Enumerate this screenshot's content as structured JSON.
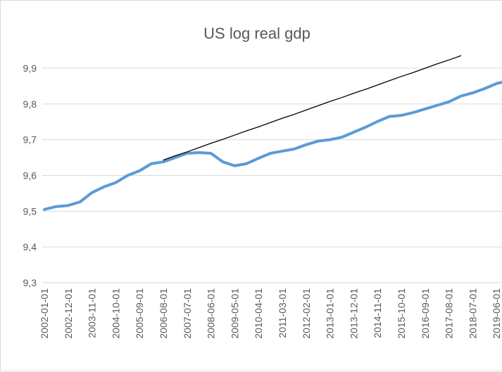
{
  "chart_data": {
    "type": "line",
    "title": "US log real gdp",
    "categories": [
      "2002-01-01",
      null,
      "2002-12-01",
      null,
      "2003-11-01",
      null,
      "2004-10-01",
      null,
      "2005-09-01",
      null,
      "2006-08-01",
      null,
      "2007-07-01",
      null,
      "2008-06-01",
      null,
      "2009-05-01",
      null,
      "2010-04-01",
      null,
      "2011-03-01",
      null,
      "2012-02-01",
      null,
      "2013-01-01",
      null,
      "2013-12-01",
      null,
      "2014-11-01",
      null,
      "2015-10-01",
      null,
      "2016-09-01",
      null,
      "2017-08-01",
      null,
      "2018-07-01",
      null,
      "2019-06-01",
      null
    ],
    "series": [
      {
        "color": "#5b9bd5",
        "width": 4,
        "values": [
          9.505,
          9.513,
          9.516,
          9.526,
          9.552,
          9.568,
          9.58,
          9.6,
          9.613,
          9.633,
          9.638,
          9.65,
          9.662,
          9.664,
          9.662,
          9.638,
          9.627,
          9.633,
          9.648,
          9.662,
          9.668,
          9.674,
          9.686,
          9.696,
          9.7,
          9.707,
          9.721,
          9.735,
          9.751,
          9.765,
          9.768,
          9.776,
          9.786,
          9.796,
          9.806,
          9.822,
          9.831,
          9.843,
          9.857,
          9.865
        ]
      },
      {
        "color": "#000000",
        "width": 1.3,
        "values": [
          null,
          null,
          null,
          null,
          null,
          null,
          null,
          null,
          null,
          null,
          9.643,
          9.655,
          9.666,
          9.678,
          9.69,
          9.701,
          9.713,
          9.725,
          9.736,
          9.748,
          9.76,
          9.771,
          9.783,
          9.795,
          9.807,
          9.818,
          9.83,
          9.841,
          9.853,
          9.865,
          9.877,
          9.888,
          9.9,
          9.912,
          9.923,
          9.935,
          null,
          null,
          null,
          null
        ]
      }
    ],
    "ylim": [
      9.3,
      9.9
    ],
    "yticks": [
      {
        "value": 9.3,
        "label": "9,3"
      },
      {
        "value": 9.4,
        "label": "9,4"
      },
      {
        "value": 9.5,
        "label": "9,5"
      },
      {
        "value": 9.6,
        "label": "9,6"
      },
      {
        "value": 9.7,
        "label": "9,7"
      },
      {
        "value": 9.8,
        "label": "9,8"
      },
      {
        "value": 9.9,
        "label": "9,9"
      }
    ],
    "grid": true
  }
}
